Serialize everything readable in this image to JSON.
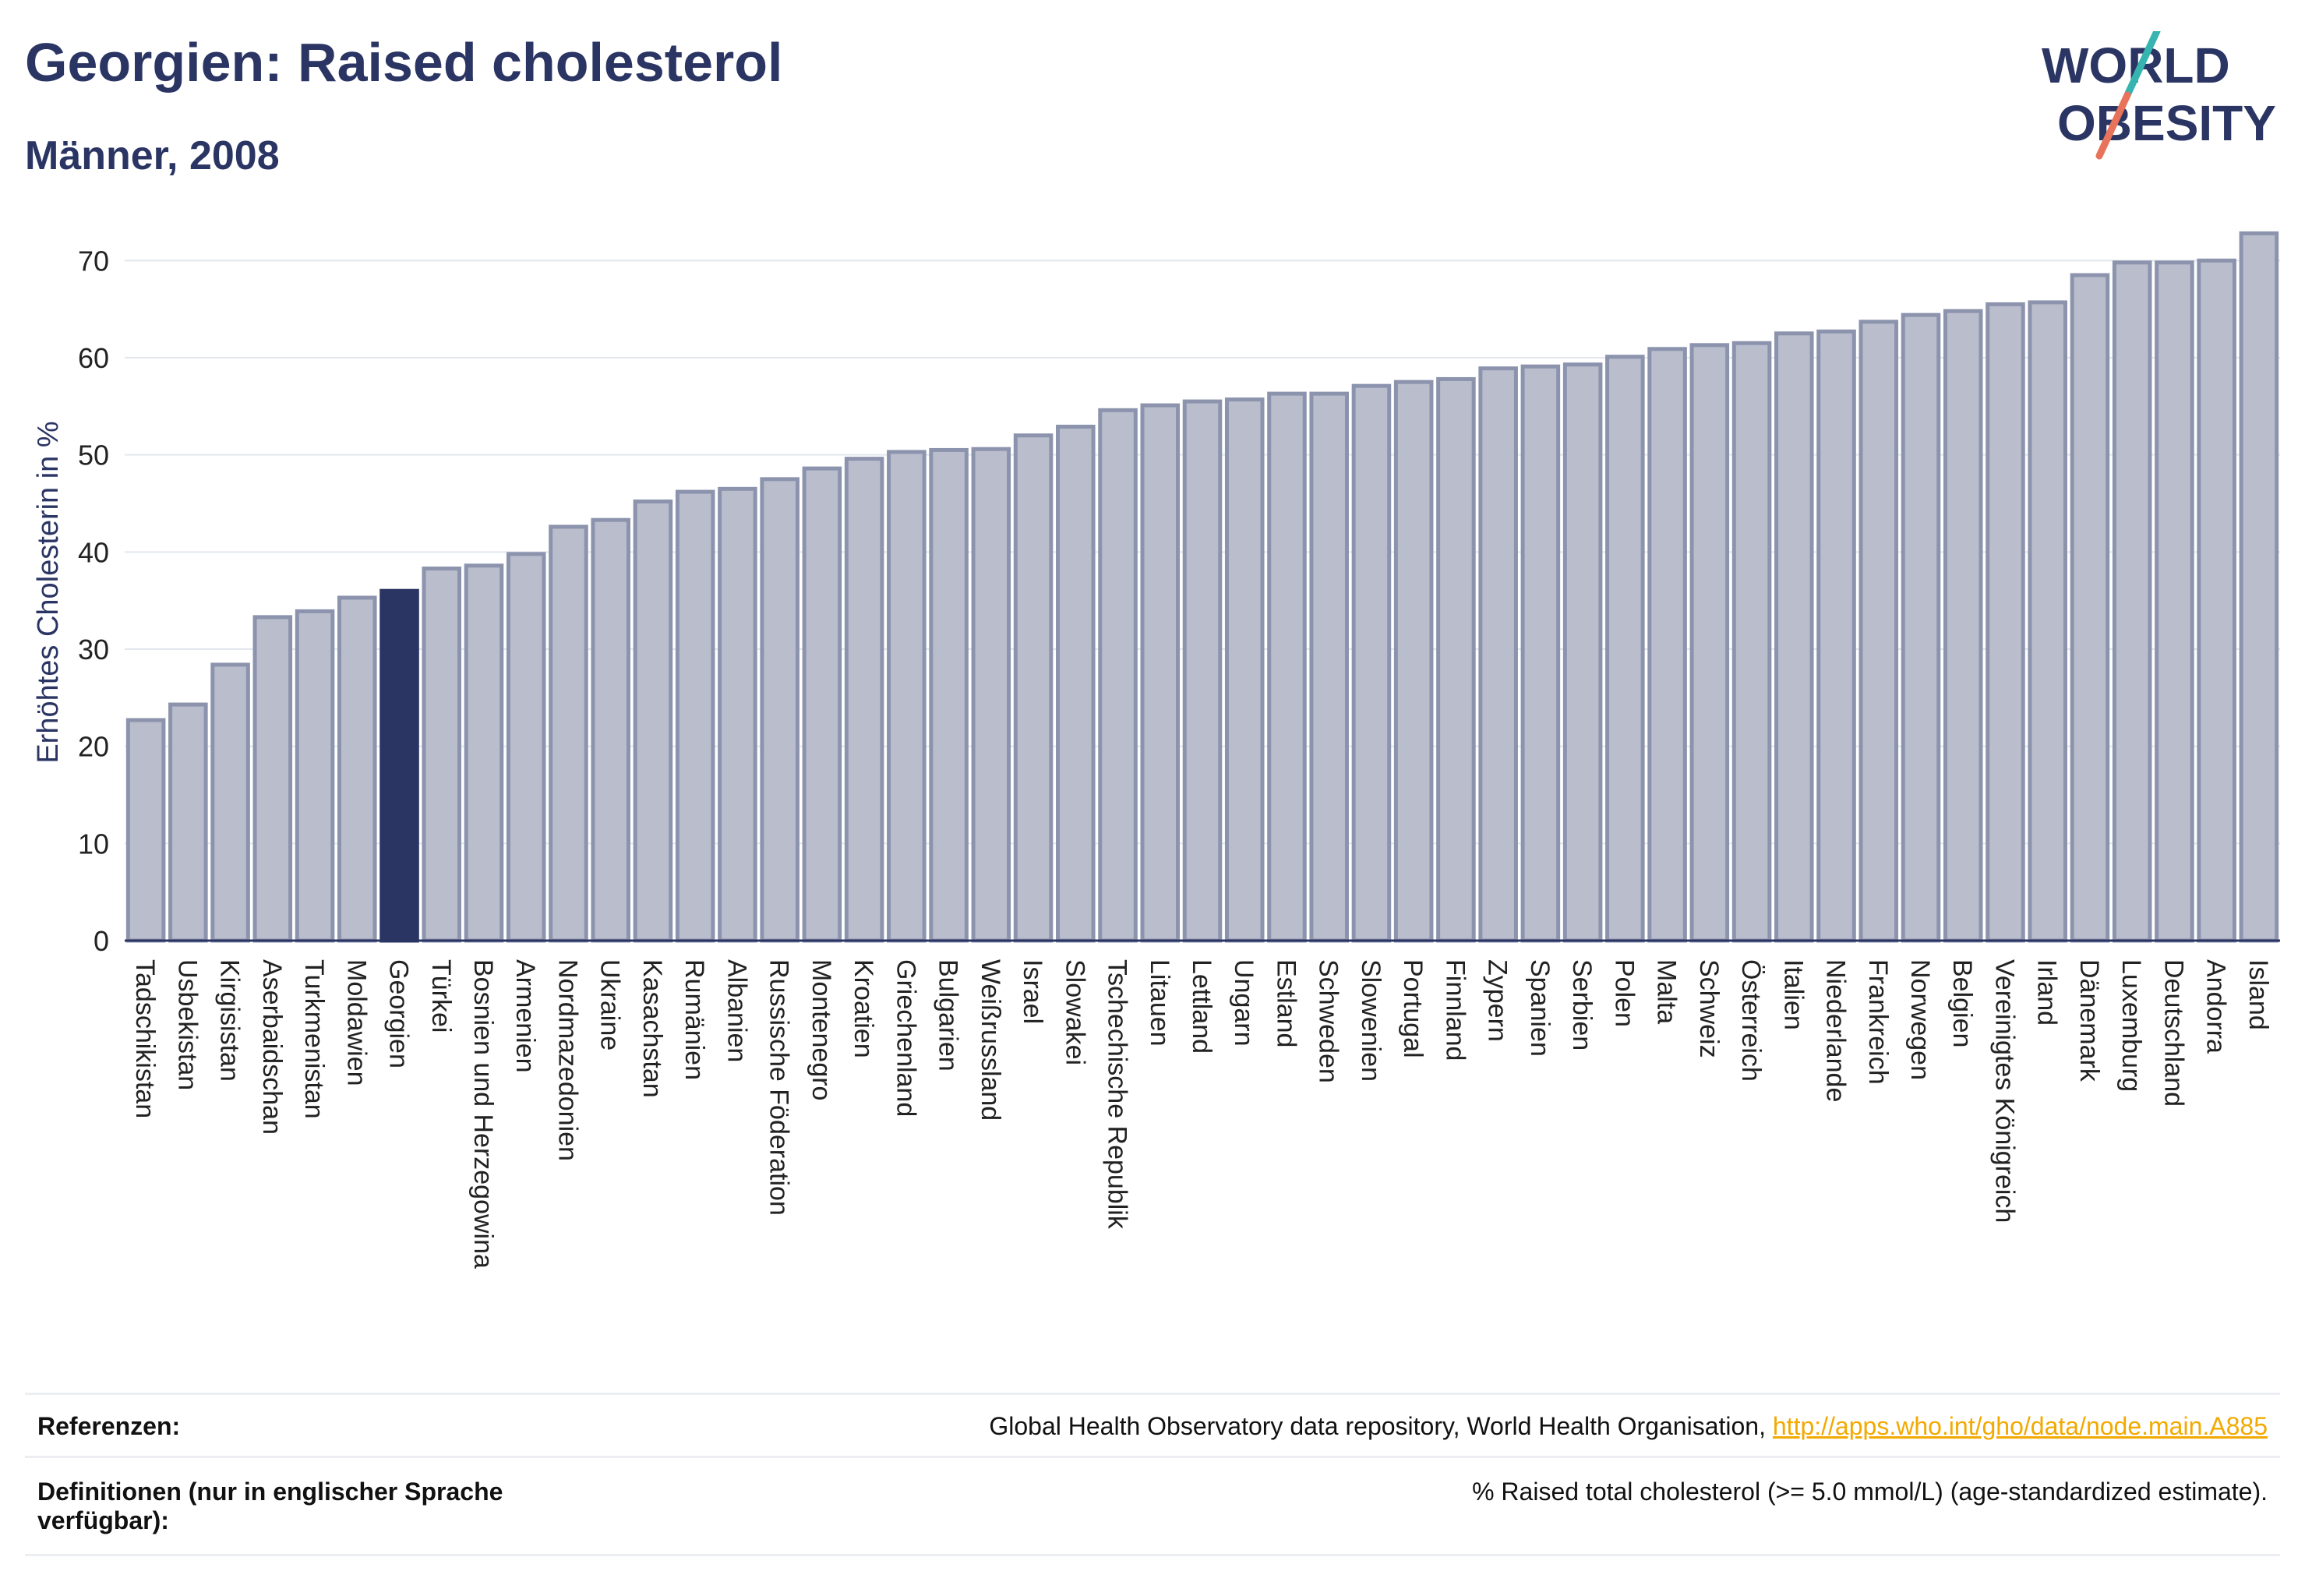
{
  "header": {
    "title": "Georgien: Raised cholesterol",
    "subtitle": "Männer, 2008"
  },
  "logo": {
    "line1": "WORLD",
    "line2": "OBESITY"
  },
  "colors": {
    "bar": "#b9bdcc",
    "bar_stroke": "#8c93ad",
    "highlight": "#2b3563",
    "grid": "#e3e6ee",
    "text": "#2b3563",
    "logo_slash_teal": "#36b4b0",
    "logo_slash_coral": "#e8735a",
    "link": "#f2a900"
  },
  "chart_data": {
    "type": "bar",
    "ylabel": "Erhöhtes Cholesterin in %",
    "ylim": [
      0,
      75
    ],
    "yticks": [
      0,
      10,
      20,
      30,
      40,
      50,
      60,
      70
    ],
    "grid": true,
    "highlight": "Georgien",
    "categories": [
      "Tadschikistan",
      "Usbekistan",
      "Kirgisistan",
      "Aserbaidschan",
      "Turkmenistan",
      "Moldawien",
      "Georgien",
      "Türkei",
      "Bosnien und Herzegowina",
      "Armenien",
      "Nordmazedonien",
      "Ukraine",
      "Kasachstan",
      "Rumänien",
      "Albanien",
      "Russische Föderation",
      "Montenegro",
      "Kroatien",
      "Griechenland",
      "Bulgarien",
      "Weißrussland",
      "Israel",
      "Slowakei",
      "Tschechische Republik",
      "Litauen",
      "Lettland",
      "Ungarn",
      "Estland",
      "Schweden",
      "Slowenien",
      "Portugal",
      "Finnland",
      "Zypern",
      "Spanien",
      "Serbien",
      "Polen",
      "Malta",
      "Schweiz",
      "Österreich",
      "Italien",
      "Niederlande",
      "Frankreich",
      "Norwegen",
      "Belgien",
      "Vereinigtes Königreich",
      "Irland",
      "Dänemark",
      "Luxemburg",
      "Deutschland",
      "Andorra",
      "Island"
    ],
    "values": [
      22.7,
      24.3,
      28.4,
      33.3,
      33.9,
      35.3,
      36.0,
      38.3,
      38.6,
      39.8,
      42.6,
      43.3,
      45.2,
      46.2,
      46.5,
      47.5,
      48.6,
      49.6,
      50.3,
      50.5,
      50.6,
      52.0,
      52.9,
      54.6,
      55.1,
      55.5,
      55.7,
      56.3,
      56.3,
      57.1,
      57.5,
      57.8,
      58.9,
      59.1,
      59.3,
      60.1,
      60.9,
      61.3,
      61.5,
      62.5,
      62.7,
      63.7,
      64.4,
      64.8,
      65.5,
      65.7,
      68.5,
      69.8,
      69.8,
      70.0,
      72.8
    ]
  },
  "footer": {
    "references_label": "Referenzen:",
    "references_text": "Global Health Observatory data repository, World Health Organisation, ",
    "references_link": "http://apps.who.int/gho/data/node.main.A885",
    "definitions_label_1": "Definitionen (nur in englischer Sprache",
    "definitions_label_2": "verfügbar):",
    "definitions_text": "% Raised total cholesterol (>= 5.0 mmol/L) (age-standardized estimate)."
  }
}
